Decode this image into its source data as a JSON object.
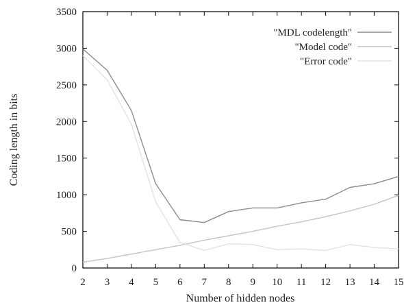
{
  "chart_data": {
    "type": "line",
    "title": "",
    "xlabel": "Number of hidden nodes",
    "ylabel": "Coding length in bits",
    "xlim": [
      2,
      15
    ],
    "ylim": [
      0,
      3500
    ],
    "x_ticks": [
      "2",
      "3",
      "4",
      "5",
      "6",
      "7",
      "8",
      "9",
      "10",
      "11",
      "12",
      "13",
      "14",
      "15"
    ],
    "y_ticks": [
      "0",
      "500",
      "1000",
      "1500",
      "2000",
      "2500",
      "3000",
      "3500"
    ],
    "grid": false,
    "legend_position": "top-right",
    "series": [
      {
        "name": "\"MDL codelength\"",
        "color": "#8c8c8c",
        "x": [
          2,
          3,
          4,
          5,
          6,
          7,
          8,
          9,
          10,
          11,
          12,
          13,
          14,
          15
        ],
        "y": [
          2990,
          2700,
          2150,
          1150,
          660,
          620,
          770,
          820,
          820,
          890,
          940,
          1100,
          1150,
          1250
        ]
      },
      {
        "name": "\"Model code\"",
        "color": "#c4c4c4",
        "x": [
          2,
          3,
          4,
          5,
          6,
          7,
          8,
          9,
          10,
          11,
          12,
          13,
          14,
          15
        ],
        "y": [
          80,
          130,
          190,
          250,
          310,
          380,
          440,
          500,
          570,
          630,
          700,
          780,
          870,
          990
        ]
      },
      {
        "name": "\"Error code\"",
        "color": "#e2e2e2",
        "x": [
          2,
          3,
          4,
          5,
          6,
          7,
          8,
          9,
          10,
          11,
          12,
          13,
          14,
          15
        ],
        "y": [
          2900,
          2570,
          1960,
          900,
          350,
          240,
          330,
          320,
          250,
          260,
          240,
          320,
          280,
          260
        ]
      }
    ]
  }
}
